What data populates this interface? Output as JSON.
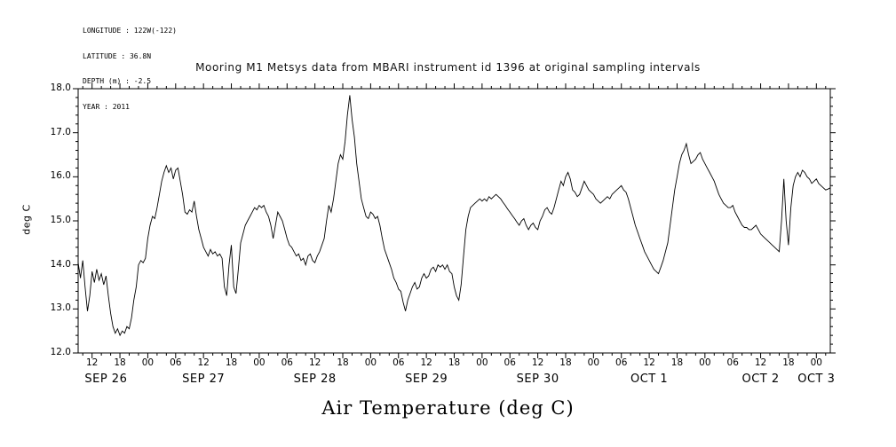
{
  "header": {
    "longitude": "LONGITUDE : 122W(-122)",
    "latitude": "LATITUDE : 36.8N",
    "depth": "DEPTH (m) : -2.5",
    "year": "YEAR : 2011"
  },
  "title": "Mooring M1 Metsys data from MBARI instrument id 1396 at original sampling intervals",
  "chart_data": {
    "type": "line",
    "title": "Mooring M1 Metsys data from MBARI instrument id 1396 at original sampling intervals",
    "ylabel": "deg C",
    "xlabel": "Air Temperature (deg C)",
    "ylim": [
      12.0,
      18.0
    ],
    "yticks": [
      12,
      13,
      14,
      15,
      16,
      17,
      18
    ],
    "ytick_labels": [
      "12.0",
      "13.0",
      "14.0",
      "15.0",
      "16.0",
      "17.0",
      "18.0"
    ],
    "grid": false,
    "legend": null,
    "x_range": [
      9,
      171
    ],
    "x_tick_start": 12,
    "x_tick_step": 6,
    "x_tick_labels": [
      "12",
      "18",
      "00",
      "06",
      "12",
      "18",
      "00",
      "06",
      "12",
      "18",
      "00",
      "06",
      "12",
      "18",
      "00",
      "06",
      "12",
      "18",
      "00",
      "06",
      "12",
      "18",
      "00",
      "06",
      "12",
      "18",
      "00"
    ],
    "date_labels": [
      {
        "label": "SEP 26",
        "hour": 15
      },
      {
        "label": "SEP 27",
        "hour": 36
      },
      {
        "label": "SEP 28",
        "hour": 60
      },
      {
        "label": "SEP 29",
        "hour": 84
      },
      {
        "label": "SEP 30",
        "hour": 108
      },
      {
        "label": "OCT 1",
        "hour": 132
      },
      {
        "label": "OCT 2",
        "hour": 156
      },
      {
        "label": "OCT 3",
        "hour": 168
      }
    ],
    "series": [
      {
        "name": "Air Temperature (deg C)",
        "x_start": 9,
        "x_step": 0.5,
        "values": [
          14.05,
          13.7,
          14.1,
          13.5,
          12.95,
          13.3,
          13.85,
          13.6,
          13.9,
          13.65,
          13.8,
          13.55,
          13.75,
          13.3,
          12.9,
          12.6,
          12.45,
          12.55,
          12.4,
          12.5,
          12.45,
          12.6,
          12.55,
          12.8,
          13.2,
          13.5,
          14.0,
          14.1,
          14.05,
          14.15,
          14.6,
          14.9,
          15.1,
          15.05,
          15.3,
          15.6,
          15.9,
          16.1,
          16.25,
          16.1,
          16.2,
          15.95,
          16.15,
          16.2,
          15.9,
          15.6,
          15.2,
          15.15,
          15.25,
          15.2,
          15.45,
          15.1,
          14.8,
          14.6,
          14.4,
          14.3,
          14.2,
          14.35,
          14.25,
          14.3,
          14.2,
          14.25,
          14.15,
          13.5,
          13.3,
          14.0,
          14.45,
          13.5,
          13.35,
          13.9,
          14.5,
          14.7,
          14.9,
          15.0,
          15.1,
          15.2,
          15.3,
          15.25,
          15.35,
          15.3,
          15.35,
          15.2,
          15.1,
          14.9,
          14.6,
          14.9,
          15.2,
          15.1,
          15.0,
          14.8,
          14.6,
          14.45,
          14.4,
          14.3,
          14.2,
          14.25,
          14.1,
          14.15,
          14.0,
          14.2,
          14.25,
          14.1,
          14.05,
          14.2,
          14.3,
          14.45,
          14.6,
          15.0,
          15.35,
          15.2,
          15.5,
          15.9,
          16.3,
          16.5,
          16.4,
          16.8,
          17.4,
          17.85,
          17.3,
          16.9,
          16.3,
          15.9,
          15.5,
          15.3,
          15.1,
          15.05,
          15.2,
          15.15,
          15.05,
          15.1,
          14.9,
          14.6,
          14.35,
          14.2,
          14.05,
          13.9,
          13.7,
          13.6,
          13.45,
          13.4,
          13.15,
          12.95,
          13.2,
          13.35,
          13.5,
          13.6,
          13.45,
          13.5,
          13.7,
          13.8,
          13.7,
          13.75,
          13.9,
          13.95,
          13.85,
          14.0,
          13.95,
          14.0,
          13.9,
          14.0,
          13.85,
          13.8,
          13.5,
          13.3,
          13.2,
          13.55,
          14.2,
          14.8,
          15.1,
          15.3,
          15.35,
          15.4,
          15.45,
          15.5,
          15.45,
          15.5,
          15.45,
          15.55,
          15.5,
          15.55,
          15.6,
          15.55,
          15.5,
          15.42,
          15.35,
          15.27,
          15.2,
          15.12,
          15.05,
          14.97,
          14.9,
          15.0,
          15.05,
          14.9,
          14.8,
          14.9,
          14.95,
          14.85,
          14.8,
          15.0,
          15.1,
          15.25,
          15.3,
          15.2,
          15.15,
          15.3,
          15.5,
          15.7,
          15.9,
          15.8,
          16.0,
          16.1,
          15.95,
          15.7,
          15.65,
          15.55,
          15.6,
          15.75,
          15.9,
          15.8,
          15.7,
          15.65,
          15.6,
          15.5,
          15.45,
          15.4,
          15.45,
          15.5,
          15.55,
          15.5,
          15.6,
          15.65,
          15.7,
          15.75,
          15.8,
          15.7,
          15.65,
          15.5,
          15.3,
          15.1,
          14.9,
          14.75,
          14.6,
          14.45,
          14.3,
          14.2,
          14.1,
          14.0,
          13.9,
          13.85,
          13.8,
          13.95,
          14.1,
          14.3,
          14.5,
          14.9,
          15.3,
          15.7,
          16.0,
          16.3,
          16.5,
          16.6,
          16.75,
          16.5,
          16.3,
          16.35,
          16.4,
          16.5,
          16.55,
          16.4,
          16.3,
          16.2,
          16.1,
          16.0,
          15.9,
          15.75,
          15.6,
          15.5,
          15.4,
          15.35,
          15.3,
          15.3,
          15.35,
          15.2,
          15.1,
          15.0,
          14.9,
          14.85,
          14.85,
          14.8,
          14.8,
          14.85,
          14.9,
          14.8,
          14.7,
          14.65,
          14.6,
          14.55,
          14.5,
          14.45,
          14.4,
          14.35,
          14.3,
          15.0,
          15.95,
          15.0,
          14.45,
          15.3,
          15.8,
          16.0,
          16.1,
          16.0,
          16.15,
          16.1,
          16.0,
          15.95,
          15.85,
          15.9,
          15.95,
          15.85,
          15.8,
          15.75,
          15.7,
          15.72,
          15.75
        ]
      }
    ]
  }
}
